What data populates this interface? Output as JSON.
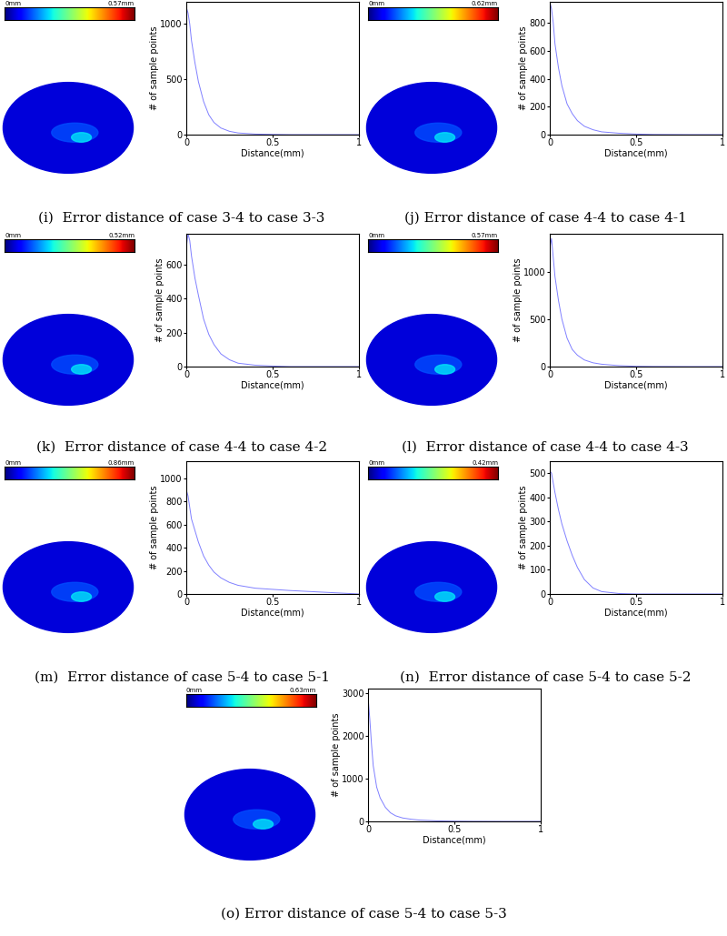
{
  "chart_data": [
    {
      "type": "line",
      "title": "(i)  Error distance of case 3-4 to case 3-3",
      "x_label": "Distance(mm)",
      "y_label": "# of sample points",
      "color": "#8080ff",
      "x": [
        0,
        0.01,
        0.02,
        0.03,
        0.05,
        0.07,
        0.1,
        0.13,
        0.16,
        0.2,
        0.25,
        0.3,
        0.4,
        0.5,
        0.6,
        0.8,
        1.0
      ],
      "values": [
        1150,
        1100,
        1000,
        850,
        650,
        480,
        300,
        180,
        110,
        60,
        30,
        15,
        5,
        2,
        0,
        0,
        0
      ],
      "xlim": [
        0,
        1
      ],
      "ylim": [
        0,
        1200
      ],
      "xticks": [
        0,
        0.5,
        1
      ],
      "yticks": [
        0,
        500,
        1000
      ],
      "colorbar_range": [
        0,
        0.57
      ],
      "colorbar_ticks": [
        {
          "value": 0,
          "label": "0mm"
        },
        {
          "value": 0.57,
          "label": "0.57mm"
        }
      ]
    },
    {
      "type": "line",
      "title": "(j) Error distance of case 4-4 to case 4-1",
      "x_label": "Distance(mm)",
      "y_label": "# of sample points",
      "color": "#8080ff",
      "x": [
        0,
        0.01,
        0.02,
        0.03,
        0.05,
        0.07,
        0.1,
        0.13,
        0.16,
        0.2,
        0.25,
        0.3,
        0.4,
        0.5,
        0.6,
        0.8,
        1.0
      ],
      "values": [
        950,
        900,
        800,
        650,
        480,
        350,
        220,
        150,
        100,
        60,
        35,
        20,
        10,
        4,
        1,
        0,
        0
      ],
      "xlim": [
        0,
        1
      ],
      "ylim": [
        0,
        950
      ],
      "xticks": [
        0,
        0.5,
        1
      ],
      "yticks": [
        0,
        200,
        400,
        600,
        800
      ],
      "colorbar_range": [
        0,
        0.62
      ],
      "colorbar_ticks": [
        {
          "value": 0,
          "label": "0mm"
        },
        {
          "value": 0.62,
          "label": "0.62mm"
        }
      ]
    },
    {
      "type": "line",
      "title": "(k)  Error distance of case 4-4 to case 4-2",
      "x_label": "Distance(mm)",
      "y_label": "# of sample points",
      "color": "#8080ff",
      "x": [
        0,
        0.01,
        0.02,
        0.03,
        0.05,
        0.07,
        0.1,
        0.13,
        0.16,
        0.2,
        0.25,
        0.3,
        0.4,
        0.5,
        0.6,
        0.8,
        1.0
      ],
      "values": [
        700,
        780,
        740,
        650,
        520,
        420,
        280,
        190,
        130,
        75,
        40,
        20,
        8,
        3,
        0,
        0,
        0
      ],
      "xlim": [
        0,
        1
      ],
      "ylim": [
        0,
        780
      ],
      "xticks": [
        0,
        0.5,
        1
      ],
      "yticks": [
        0,
        200,
        400,
        600
      ],
      "colorbar_range": [
        0,
        0.52
      ],
      "colorbar_ticks": [
        {
          "value": 0,
          "label": "0mm"
        },
        {
          "value": 0.52,
          "label": "0.52mm"
        }
      ]
    },
    {
      "type": "line",
      "title": "(l)  Error distance of case 4-4 to case 4-3",
      "x_label": "Distance(mm)",
      "y_label": "# of sample points",
      "color": "#8080ff",
      "x": [
        0,
        0.01,
        0.02,
        0.03,
        0.05,
        0.07,
        0.1,
        0.13,
        0.16,
        0.2,
        0.25,
        0.3,
        0.4,
        0.5,
        0.6,
        0.8,
        1.0
      ],
      "values": [
        1250,
        1350,
        1150,
        950,
        700,
        500,
        300,
        180,
        120,
        70,
        40,
        25,
        10,
        3,
        1,
        0,
        0
      ],
      "xlim": [
        0,
        1
      ],
      "ylim": [
        0,
        1400
      ],
      "xticks": [
        0,
        0.5,
        1
      ],
      "yticks": [
        0,
        500,
        1000
      ],
      "colorbar_range": [
        0,
        0.57
      ],
      "colorbar_ticks": [
        {
          "value": 0,
          "label": "0mm"
        },
        {
          "value": 0.57,
          "label": "0.57mm"
        }
      ]
    },
    {
      "type": "line",
      "title": "(m)  Error distance of case 5-4 to case 5-1",
      "x_label": "Distance(mm)",
      "y_label": "# of sample points",
      "color": "#8080ff",
      "x": [
        0,
        0.01,
        0.02,
        0.03,
        0.05,
        0.07,
        0.1,
        0.13,
        0.16,
        0.2,
        0.25,
        0.3,
        0.4,
        0.5,
        0.6,
        0.8,
        1.0
      ],
      "values": [
        900,
        850,
        750,
        650,
        550,
        450,
        330,
        250,
        190,
        140,
        100,
        75,
        50,
        40,
        30,
        15,
        0
      ],
      "xlim": [
        0,
        1
      ],
      "ylim": [
        0,
        1150
      ],
      "xticks": [
        0,
        0.5,
        1
      ],
      "yticks": [
        0,
        200,
        400,
        600,
        800,
        1000
      ],
      "colorbar_range": [
        0,
        0.86
      ],
      "colorbar_ticks": [
        {
          "value": 0,
          "label": "0mm"
        },
        {
          "value": 0.86,
          "label": "0.86mm"
        }
      ]
    },
    {
      "type": "line",
      "title": "(n)  Error distance of case 5-4 to case 5-2",
      "x_label": "Distance(mm)",
      "y_label": "# of sample points",
      "color": "#8080ff",
      "x": [
        0,
        0.01,
        0.02,
        0.03,
        0.05,
        0.07,
        0.1,
        0.13,
        0.16,
        0.2,
        0.25,
        0.3,
        0.4,
        0.5,
        0.6,
        0.8,
        1.0
      ],
      "values": [
        510,
        500,
        460,
        420,
        350,
        290,
        220,
        160,
        110,
        60,
        25,
        10,
        2,
        0,
        0,
        0,
        0
      ],
      "xlim": [
        0,
        1
      ],
      "ylim": [
        0,
        550
      ],
      "xticks": [
        0,
        0.5,
        1
      ],
      "yticks": [
        0,
        100,
        200,
        300,
        400,
        500
      ],
      "colorbar_range": [
        0,
        0.42
      ],
      "colorbar_ticks": [
        {
          "value": 0,
          "label": "0mm"
        },
        {
          "value": 0.42,
          "label": "0.42mm"
        }
      ]
    },
    {
      "type": "line",
      "title": "(o) Error distance of case 5-4 to case 5-3",
      "x_label": "Distance(mm)",
      "y_label": "# of sample points",
      "color": "#8080ff",
      "x": [
        0,
        0.01,
        0.02,
        0.03,
        0.05,
        0.07,
        0.1,
        0.13,
        0.16,
        0.2,
        0.25,
        0.3,
        0.4,
        0.5,
        0.6,
        0.8,
        1.0
      ],
      "values": [
        2900,
        2400,
        1800,
        1300,
        800,
        550,
        330,
        200,
        130,
        80,
        50,
        30,
        12,
        5,
        2,
        0,
        0
      ],
      "xlim": [
        0,
        1
      ],
      "ylim": [
        0,
        3100
      ],
      "xticks": [
        0,
        0.5,
        1
      ],
      "yticks": [
        0,
        1000,
        2000,
        3000
      ],
      "colorbar_range": [
        0,
        0.63
      ],
      "colorbar_ticks": [
        {
          "value": 0,
          "label": "0mm"
        },
        {
          "value": 0.63,
          "label": "0.63mm"
        }
      ]
    }
  ]
}
